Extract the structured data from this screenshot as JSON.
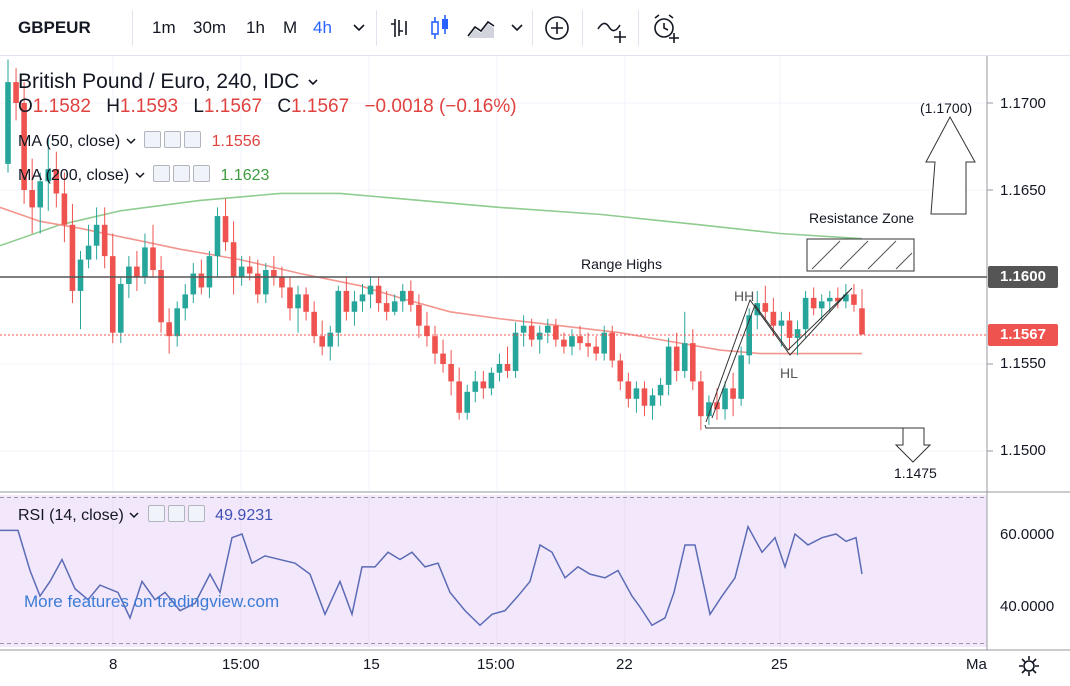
{
  "toolbar": {
    "symbol": "GBPEUR",
    "intervals": [
      "1m",
      "30m",
      "1h",
      "M",
      "4h"
    ],
    "active_interval": "4h",
    "icons": [
      "chevron-down-icon",
      "bar-style-icon",
      "candle-style-icon",
      "area-style-icon",
      "chevron-down-icon",
      "add-indicator-icon",
      "compare-icon",
      "alert-icon"
    ]
  },
  "header": {
    "title": "British Pound / Euro, 240, IDC",
    "open_label": "O",
    "open": "1.1582",
    "high_label": "H",
    "high": "1.1593",
    "low_label": "L",
    "low": "1.1567",
    "close_label": "C",
    "close": "1.1567",
    "change": "−0.0018 (−0.16%)"
  },
  "indicators": {
    "ma50": {
      "label": "MA (50, close)",
      "value": "1.1556",
      "color": "#e9605d"
    },
    "ma200": {
      "label": "MA (200, close)",
      "value": "1.1623",
      "color": "#4caf50"
    },
    "rsi": {
      "label": "RSI (14, close)",
      "value": "49.9231",
      "color": "#3f51b5"
    }
  },
  "price_axis": {
    "labels": [
      "1.1700",
      "1.1650",
      "1.1600",
      "1.1567",
      "1.1550",
      "1.1500"
    ],
    "range_highs_tag": "1.1600",
    "last_price_tag": "1.1567"
  },
  "rsi_axis": {
    "labels": [
      "60.0000",
      "40.0000"
    ]
  },
  "time_axis": {
    "labels": [
      "8",
      "15:00",
      "15",
      "15:00",
      "22",
      "25",
      "Ma"
    ]
  },
  "annotations": {
    "range_highs": "Range Highs",
    "resistance_zone": "Resistance Zone",
    "target_up": "(1.1700)",
    "target_down": "1.1475",
    "hh": "HH",
    "hl": "HL"
  },
  "watermark": "More features on tradingview.com",
  "colors": {
    "up": "#26a69a",
    "down": "#ef5350",
    "ma50": "#f3968f",
    "ma200": "#8fcc8f",
    "rsi": "#5b6bb5",
    "rsi_bg": "#f3e8fb"
  },
  "chart_data": {
    "type": "candlestick",
    "ylim": [
      1.1475,
      1.1725
    ],
    "rsi_ylim": [
      25,
      75
    ],
    "candles": [
      [
        1.1665,
        1.1725,
        1.166,
        1.1712
      ],
      [
        1.1712,
        1.172,
        1.169,
        1.17
      ],
      [
        1.17,
        1.1712,
        1.1642,
        1.165
      ],
      [
        1.165,
        1.1668,
        1.1625,
        1.164
      ],
      [
        1.164,
        1.166,
        1.1625,
        1.1655
      ],
      [
        1.1655,
        1.168,
        1.1638,
        1.1662
      ],
      [
        1.1662,
        1.1672,
        1.164,
        1.1648
      ],
      [
        1.1648,
        1.166,
        1.162,
        1.163
      ],
      [
        1.163,
        1.1642,
        1.1585,
        1.1592
      ],
      [
        1.1592,
        1.1615,
        1.157,
        1.161
      ],
      [
        1.161,
        1.163,
        1.1605,
        1.1618
      ],
      [
        1.1618,
        1.164,
        1.161,
        1.163
      ],
      [
        1.163,
        1.164,
        1.1605,
        1.1612
      ],
      [
        1.1612,
        1.1625,
        1.1562,
        1.1568
      ],
      [
        1.1568,
        1.16,
        1.1562,
        1.1596
      ],
      [
        1.1596,
        1.1612,
        1.1588,
        1.1606
      ],
      [
        1.1606,
        1.1615,
        1.1592,
        1.16
      ],
      [
        1.16,
        1.1625,
        1.1596,
        1.1617
      ],
      [
        1.1617,
        1.163,
        1.16,
        1.1604
      ],
      [
        1.1604,
        1.1612,
        1.1568,
        1.1574
      ],
      [
        1.1574,
        1.1582,
        1.1556,
        1.1566
      ],
      [
        1.1566,
        1.1586,
        1.156,
        1.1582
      ],
      [
        1.1582,
        1.1596,
        1.1575,
        1.159
      ],
      [
        1.159,
        1.1608,
        1.1585,
        1.1602
      ],
      [
        1.1602,
        1.161,
        1.159,
        1.1594
      ],
      [
        1.1594,
        1.1615,
        1.1588,
        1.1612
      ],
      [
        1.1612,
        1.164,
        1.16,
        1.1635
      ],
      [
        1.1635,
        1.1645,
        1.1615,
        1.162
      ],
      [
        1.162,
        1.1632,
        1.159,
        1.16
      ],
      [
        1.16,
        1.1612,
        1.1595,
        1.1606
      ],
      [
        1.1606,
        1.1612,
        1.1598,
        1.1602
      ],
      [
        1.1602,
        1.161,
        1.1585,
        1.159
      ],
      [
        1.159,
        1.1608,
        1.1585,
        1.1604
      ],
      [
        1.1604,
        1.1612,
        1.1595,
        1.16
      ],
      [
        1.16,
        1.1606,
        1.1588,
        1.1594
      ],
      [
        1.1594,
        1.16,
        1.1575,
        1.1582
      ],
      [
        1.1582,
        1.1595,
        1.1568,
        1.159
      ],
      [
        1.159,
        1.1594,
        1.1575,
        1.158
      ],
      [
        1.158,
        1.1586,
        1.1562,
        1.1566
      ],
      [
        1.1566,
        1.1575,
        1.1555,
        1.156
      ],
      [
        1.156,
        1.1572,
        1.1552,
        1.1568
      ],
      [
        1.1568,
        1.1595,
        1.156,
        1.1592
      ],
      [
        1.1592,
        1.16,
        1.1575,
        1.158
      ],
      [
        1.158,
        1.1592,
        1.1572,
        1.1586
      ],
      [
        1.1586,
        1.1596,
        1.158,
        1.159
      ],
      [
        1.159,
        1.16,
        1.1582,
        1.1595
      ],
      [
        1.1595,
        1.16,
        1.158,
        1.1585
      ],
      [
        1.1585,
        1.1592,
        1.1575,
        1.158
      ],
      [
        1.158,
        1.159,
        1.1578,
        1.1586
      ],
      [
        1.1586,
        1.1596,
        1.158,
        1.1592
      ],
      [
        1.1592,
        1.1598,
        1.158,
        1.1584
      ],
      [
        1.1584,
        1.159,
        1.1565,
        1.1572
      ],
      [
        1.1572,
        1.158,
        1.156,
        1.1566
      ],
      [
        1.1566,
        1.1572,
        1.155,
        1.1556
      ],
      [
        1.1556,
        1.1564,
        1.1545,
        1.155
      ],
      [
        1.155,
        1.1558,
        1.1532,
        1.154
      ],
      [
        1.154,
        1.1548,
        1.1518,
        1.1522
      ],
      [
        1.1522,
        1.1538,
        1.1518,
        1.1534
      ],
      [
        1.1534,
        1.1546,
        1.1528,
        1.154
      ],
      [
        1.154,
        1.1546,
        1.153,
        1.1536
      ],
      [
        1.1536,
        1.1548,
        1.1532,
        1.1545
      ],
      [
        1.1545,
        1.1556,
        1.154,
        1.155
      ],
      [
        1.155,
        1.156,
        1.1542,
        1.1546
      ],
      [
        1.1546,
        1.1574,
        1.1542,
        1.1568
      ],
      [
        1.1568,
        1.1578,
        1.156,
        1.1572
      ],
      [
        1.1572,
        1.1576,
        1.156,
        1.1564
      ],
      [
        1.1564,
        1.1572,
        1.1556,
        1.1568
      ],
      [
        1.1568,
        1.1576,
        1.1562,
        1.1572
      ],
      [
        1.1572,
        1.1576,
        1.156,
        1.1564
      ],
      [
        1.1564,
        1.1568,
        1.1556,
        1.156
      ],
      [
        1.156,
        1.157,
        1.1555,
        1.1566
      ],
      [
        1.1566,
        1.1572,
        1.1558,
        1.1562
      ],
      [
        1.1562,
        1.1568,
        1.1554,
        1.156
      ],
      [
        1.156,
        1.1566,
        1.1552,
        1.1556
      ],
      [
        1.1556,
        1.1572,
        1.1552,
        1.1568
      ],
      [
        1.1568,
        1.1572,
        1.1548,
        1.1552
      ],
      [
        1.1552,
        1.1556,
        1.1535,
        1.154
      ],
      [
        1.154,
        1.1545,
        1.1525,
        1.153
      ],
      [
        1.153,
        1.154,
        1.1522,
        1.1536
      ],
      [
        1.1536,
        1.154,
        1.152,
        1.1526
      ],
      [
        1.1526,
        1.1536,
        1.1518,
        1.1532
      ],
      [
        1.1532,
        1.1542,
        1.1526,
        1.1538
      ],
      [
        1.1538,
        1.1565,
        1.1532,
        1.156
      ],
      [
        1.156,
        1.1568,
        1.154,
        1.1546
      ],
      [
        1.1546,
        1.158,
        1.1542,
        1.1562
      ],
      [
        1.1562,
        1.157,
        1.1535,
        1.154
      ],
      [
        1.154,
        1.1546,
        1.1512,
        1.152
      ],
      [
        1.152,
        1.1532,
        1.1515,
        1.1528
      ],
      [
        1.1528,
        1.1536,
        1.1518,
        1.1524
      ],
      [
        1.1524,
        1.154,
        1.1518,
        1.1536
      ],
      [
        1.1536,
        1.1545,
        1.152,
        1.153
      ],
      [
        1.153,
        1.156,
        1.1526,
        1.1555
      ],
      [
        1.1555,
        1.1582,
        1.155,
        1.1578
      ],
      [
        1.1578,
        1.1592,
        1.157,
        1.1585
      ],
      [
        1.1585,
        1.1595,
        1.1575,
        1.158
      ],
      [
        1.158,
        1.1588,
        1.1566,
        1.1572
      ],
      [
        1.1572,
        1.158,
        1.156,
        1.1575
      ],
      [
        1.1575,
        1.158,
        1.1558,
        1.1565
      ],
      [
        1.1565,
        1.1575,
        1.1555,
        1.157
      ],
      [
        1.157,
        1.1592,
        1.1565,
        1.1588
      ],
      [
        1.1588,
        1.1594,
        1.1578,
        1.1582
      ],
      [
        1.1582,
        1.159,
        1.1575,
        1.1586
      ],
      [
        1.1586,
        1.1592,
        1.158,
        1.1588
      ],
      [
        1.1588,
        1.1594,
        1.1582,
        1.1586
      ],
      [
        1.1586,
        1.1596,
        1.1582,
        1.159
      ],
      [
        1.159,
        1.1596,
        1.158,
        1.1584
      ],
      [
        1.1582,
        1.1593,
        1.1567,
        1.1567
      ]
    ],
    "ma50": [
      [
        0,
        1.164
      ],
      [
        40,
        1.1632
      ],
      [
        80,
        1.1628
      ],
      [
        130,
        1.1622
      ],
      [
        180,
        1.1616
      ],
      [
        240,
        1.161
      ],
      [
        300,
        1.1602
      ],
      [
        360,
        1.1595
      ],
      [
        400,
        1.1588
      ],
      [
        450,
        1.158
      ],
      [
        500,
        1.1576
      ],
      [
        560,
        1.1572
      ],
      [
        620,
        1.1568
      ],
      [
        680,
        1.1562
      ],
      [
        720,
        1.1558
      ],
      [
        760,
        1.1556
      ],
      [
        800,
        1.1556
      ],
      [
        862,
        1.1556
      ]
    ],
    "ma200": [
      [
        0,
        1.1618
      ],
      [
        60,
        1.163
      ],
      [
        120,
        1.1638
      ],
      [
        200,
        1.1644
      ],
      [
        280,
        1.1648
      ],
      [
        340,
        1.1648
      ],
      [
        400,
        1.1645
      ],
      [
        500,
        1.164
      ],
      [
        600,
        1.1636
      ],
      [
        700,
        1.163
      ],
      [
        780,
        1.1625
      ],
      [
        862,
        1.1622
      ]
    ],
    "rsi": [
      [
        0,
        61
      ],
      [
        18,
        61
      ],
      [
        30,
        50
      ],
      [
        40,
        43
      ],
      [
        50,
        47
      ],
      [
        62,
        53
      ],
      [
        75,
        45
      ],
      [
        88,
        42
      ],
      [
        100,
        46
      ],
      [
        118,
        44
      ],
      [
        130,
        37
      ],
      [
        142,
        47
      ],
      [
        155,
        42
      ],
      [
        165,
        44
      ],
      [
        180,
        39
      ],
      [
        195,
        41
      ],
      [
        210,
        49
      ],
      [
        220,
        44
      ],
      [
        232,
        59
      ],
      [
        242,
        60
      ],
      [
        252,
        52
      ],
      [
        265,
        54
      ],
      [
        280,
        53
      ],
      [
        295,
        52
      ],
      [
        310,
        49
      ],
      [
        325,
        38
      ],
      [
        340,
        47
      ],
      [
        352,
        38
      ],
      [
        362,
        51
      ],
      [
        375,
        51
      ],
      [
        388,
        55
      ],
      [
        400,
        53
      ],
      [
        412,
        55
      ],
      [
        425,
        51
      ],
      [
        438,
        52
      ],
      [
        450,
        44
      ],
      [
        465,
        39
      ],
      [
        480,
        35
      ],
      [
        492,
        38
      ],
      [
        505,
        39
      ],
      [
        518,
        43
      ],
      [
        530,
        47
      ],
      [
        540,
        57
      ],
      [
        552,
        55
      ],
      [
        565,
        48
      ],
      [
        578,
        51
      ],
      [
        590,
        49
      ],
      [
        605,
        48
      ],
      [
        618,
        50
      ],
      [
        632,
        43
      ],
      [
        640,
        40
      ],
      [
        652,
        35
      ],
      [
        665,
        37
      ],
      [
        674,
        44
      ],
      [
        685,
        57
      ],
      [
        695,
        57
      ],
      [
        710,
        38
      ],
      [
        722,
        43
      ],
      [
        735,
        48
      ],
      [
        748,
        62
      ],
      [
        762,
        55
      ],
      [
        775,
        59
      ],
      [
        785,
        51
      ],
      [
        795,
        60
      ],
      [
        808,
        57
      ],
      [
        822,
        59
      ],
      [
        836,
        60
      ],
      [
        846,
        58
      ],
      [
        856,
        59
      ],
      [
        862,
        49
      ]
    ]
  }
}
